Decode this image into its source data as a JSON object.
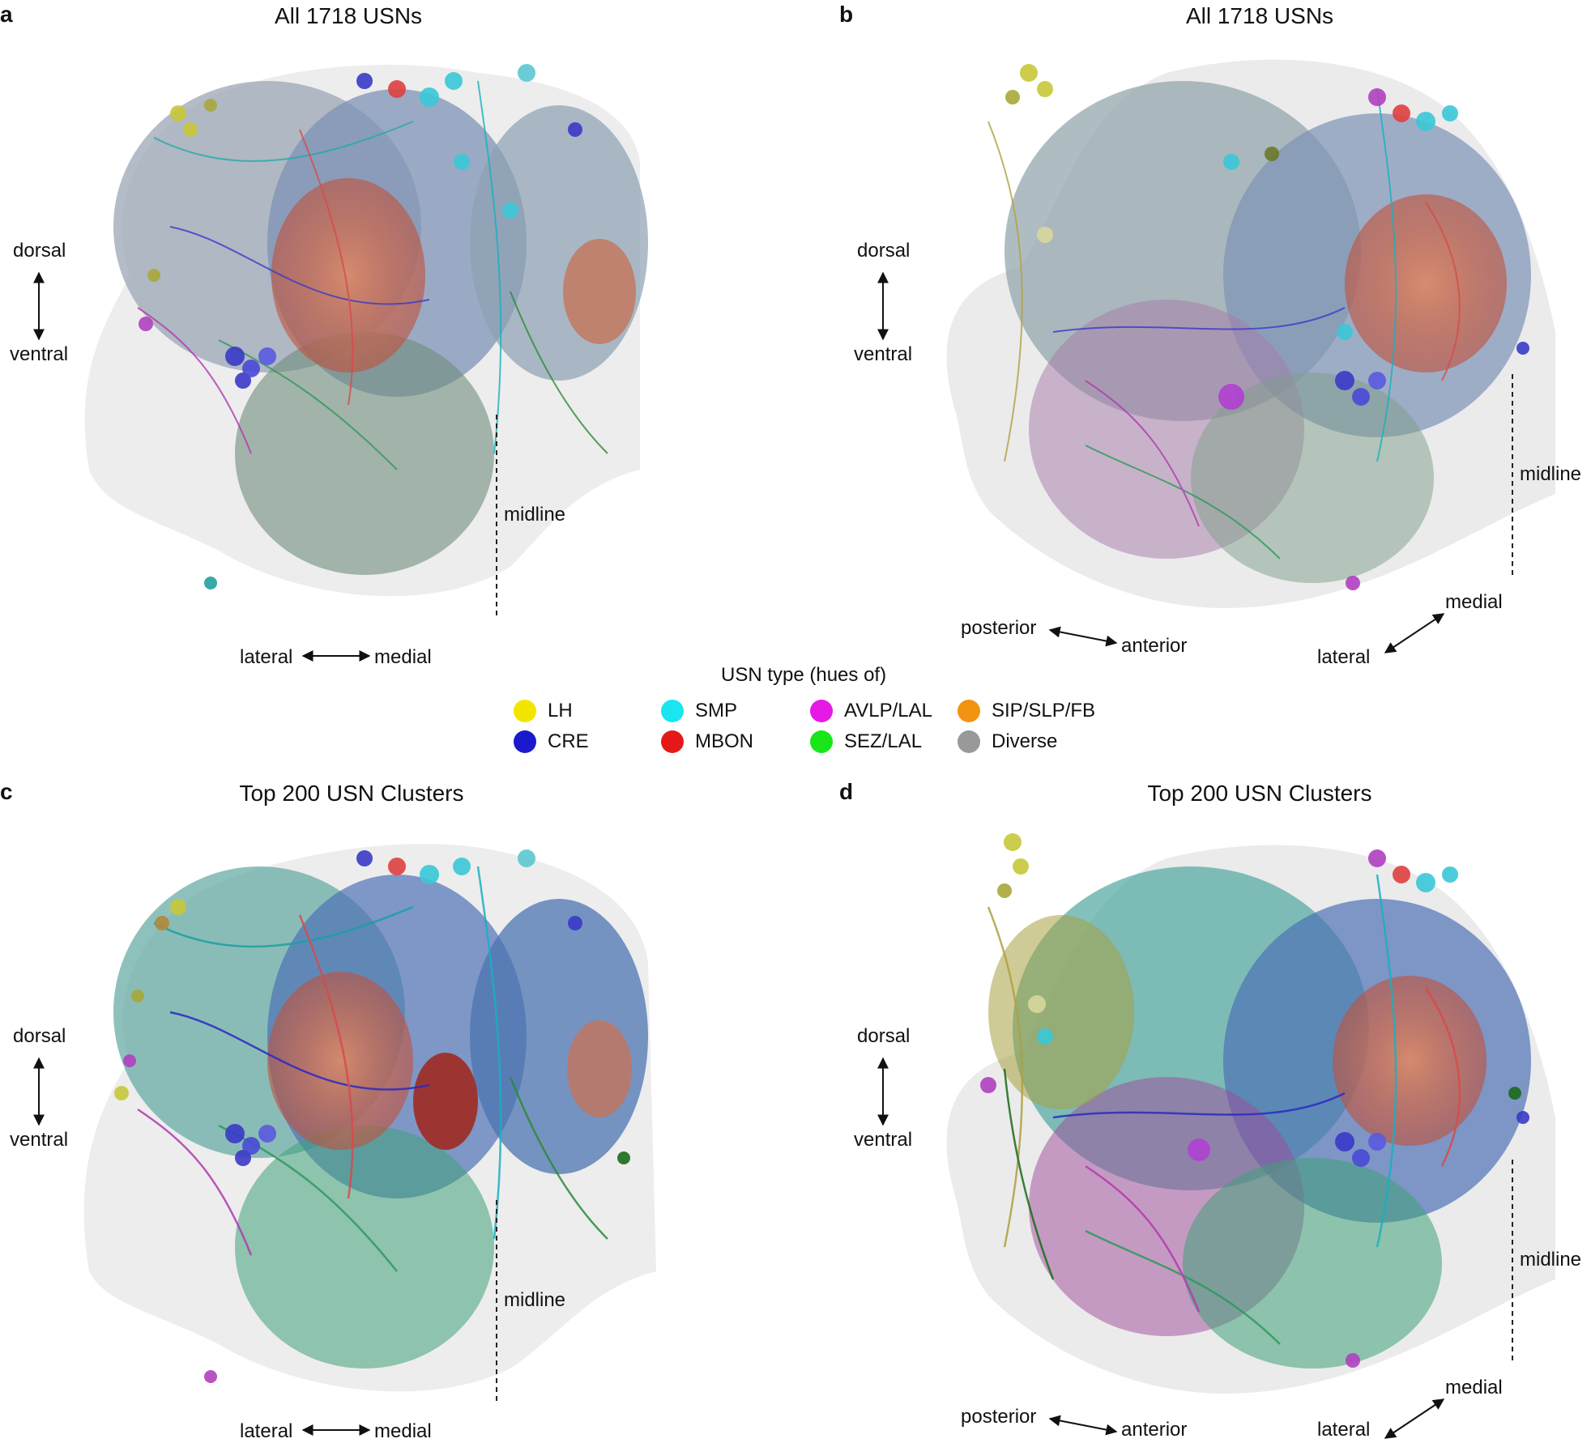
{
  "panels": [
    {
      "letter": "a",
      "title": "All 1718 USNs"
    },
    {
      "letter": "b",
      "title": "All 1718 USNs"
    },
    {
      "letter": "c",
      "title": "Top 200 USN Clusters"
    },
    {
      "letter": "d",
      "title": "Top 200 USN Clusters"
    }
  ],
  "axes": {
    "dorsal": "dorsal",
    "ventral": "ventral",
    "midline": "midline",
    "lateral": "lateral",
    "medial": "medial",
    "posterior": "posterior",
    "anterior": "anterior"
  },
  "legend": {
    "title": "USN type (hues of)",
    "items": [
      {
        "label": "LH",
        "color": "#f2e600"
      },
      {
        "label": "CRE",
        "color": "#1a1acc"
      },
      {
        "label": "SMP",
        "color": "#19e6f0"
      },
      {
        "label": "MBON",
        "color": "#e61919"
      },
      {
        "label": "AVLP/LAL",
        "color": "#e619e6"
      },
      {
        "label": "SEZ/LAL",
        "color": "#19e619"
      },
      {
        "label": "SIP/SLP/FB",
        "color": "#f29410"
      },
      {
        "label": "Diverse",
        "color": "#999999"
      }
    ]
  }
}
